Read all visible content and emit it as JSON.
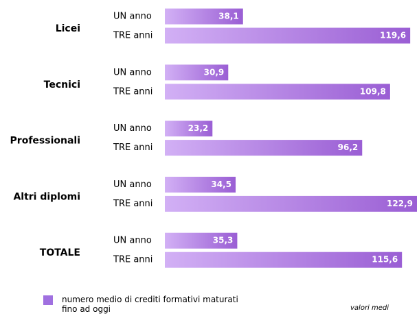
{
  "chart_data": {
    "type": "bar",
    "orientation": "horizontal",
    "categories": [
      "Licei",
      "Tecnici",
      "Professionali",
      "Altri diplomi",
      "TOTALE"
    ],
    "series": [
      {
        "name": "UN anno",
        "color": "#9a5ed4",
        "values": [
          38.1,
          30.9,
          23.2,
          34.5,
          35.3
        ],
        "value_labels": [
          "38,1",
          "30,9",
          "23,2",
          "34,5",
          "35,3"
        ]
      },
      {
        "name": "TRE anni",
        "color": "#9a5ed4",
        "values": [
          119.6,
          109.8,
          96.2,
          122.9,
          115.6
        ],
        "value_labels": [
          "119,6",
          "109,8",
          "96,2",
          "122,9",
          "115,6"
        ]
      }
    ],
    "legend_label": "numero medio di crediti formativi maturati fino ad oggi",
    "note": "valori medi"
  }
}
